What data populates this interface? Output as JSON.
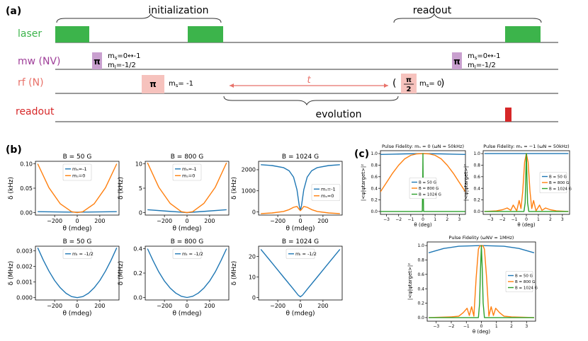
{
  "panel_a": {
    "label": "(a)",
    "init_label": "initialization",
    "readout_top_label": "readout",
    "evolution_label": "evolution",
    "t_label": "t",
    "rows": [
      {
        "name": "laser",
        "label": "laser",
        "color": "#3cb44b"
      },
      {
        "name": "mw",
        "label": "mw (NV)",
        "color": "#a0409a"
      },
      {
        "name": "rf",
        "label": "rf (N)",
        "color": "#e8726a"
      },
      {
        "name": "readout",
        "label": "readout",
        "color": "#d62728"
      }
    ],
    "pi_label": "π",
    "mw_text_1a": "m",
    "mw_text_1b": "=0↔-1",
    "mw_text_2a": "m",
    "mw_text_2b": "=-1/2",
    "mw_sub_s": "s",
    "mw_sub_I": "I",
    "rf_text_1": "m",
    "rf_text_1b": "= -1",
    "rf_text_2b": "= 0",
    "half_pi_num": "π",
    "half_pi_den": "2",
    "paren_open": "(",
    "paren_close": ")",
    "pulse_color": "#f6c2bd",
    "mw_pulse_color": "#c9a0cf",
    "laser_color": "#3cb44b",
    "readout_color": "#d62728"
  },
  "panel_b_label": "(b)",
  "panel_c_label": "(c)",
  "colors": {
    "blue": "#1f77b4",
    "orange": "#ff7f0e",
    "green": "#2ca02c"
  },
  "chart_data": [
    {
      "type": "line",
      "title": "B = 50 G",
      "xlabel": "θ (mdeg)",
      "ylabel": "δ (kHz)",
      "xlim": [
        -370,
        370
      ],
      "ylim": [
        -0.005,
        0.105
      ],
      "xticks": [
        -200,
        0,
        200
      ],
      "xtick_labels": [
        "−200",
        "0",
        "200"
      ],
      "yticks": [
        0.0,
        0.05,
        0.1
      ],
      "ytick_labels": [
        "0.00",
        "0.05",
        "0.10"
      ],
      "legend": "top-center",
      "series": [
        {
          "name": "mₛ=-1",
          "color": "#1f77b4",
          "x": [
            -350,
            0,
            350
          ],
          "y": [
            0.002,
            0.001,
            0.002
          ]
        },
        {
          "name": "mₛ=0",
          "color": "#ff7f0e",
          "x": [
            -350,
            -250,
            -150,
            -50,
            0,
            50,
            150,
            250,
            350
          ],
          "y": [
            0.1,
            0.051,
            0.018,
            0.002,
            0.0,
            0.002,
            0.018,
            0.051,
            0.1
          ]
        }
      ]
    },
    {
      "type": "line",
      "title": "B = 800 G",
      "xlabel": "θ (mdeg)",
      "ylabel": "δ (kHz)",
      "xlim": [
        -370,
        370
      ],
      "ylim": [
        -0.5,
        10.5
      ],
      "xticks": [
        -200,
        0,
        200
      ],
      "xtick_labels": [
        "−200",
        "0",
        "200"
      ],
      "yticks": [
        0,
        5,
        10
      ],
      "ytick_labels": [
        "0",
        "5",
        "10"
      ],
      "legend": "top-center",
      "series": [
        {
          "name": "mₛ=-1",
          "color": "#1f77b4",
          "x": [
            -350,
            -175,
            0,
            175,
            350
          ],
          "y": [
            0.6,
            0.3,
            0.0,
            0.3,
            0.6
          ]
        },
        {
          "name": "mₛ=0",
          "color": "#ff7f0e",
          "x": [
            -350,
            -250,
            -150,
            -50,
            0,
            50,
            150,
            250,
            350
          ],
          "y": [
            10.2,
            5.2,
            1.9,
            0.2,
            0.0,
            0.2,
            1.9,
            5.2,
            10.2
          ]
        }
      ]
    },
    {
      "type": "line",
      "title": "B = 1024 G",
      "xlabel": "θ (mdeg)",
      "ylabel": "δ (kHz)",
      "xlim": [
        -370,
        370
      ],
      "ylim": [
        -150,
        2400
      ],
      "xticks": [
        -200,
        0,
        200
      ],
      "xtick_labels": [
        "−200",
        "0",
        "200"
      ],
      "yticks": [
        0,
        1000,
        2000
      ],
      "ytick_labels": [
        "0",
        "1000",
        "2000"
      ],
      "legend": "center-right",
      "series": [
        {
          "name": "mₛ=-1",
          "color": "#1f77b4",
          "x": [
            -350,
            -250,
            -150,
            -100,
            -60,
            -30,
            -10,
            0,
            10,
            30,
            60,
            100,
            150,
            250,
            350
          ],
          "y": [
            2240,
            2200,
            2100,
            1950,
            1650,
            1050,
            300,
            60,
            300,
            1050,
            1650,
            1950,
            2100,
            2200,
            2240
          ]
        },
        {
          "name": "mₛ=0",
          "color": "#ff7f0e",
          "x": [
            -350,
            -250,
            -150,
            -100,
            -60,
            -30,
            -10,
            0,
            10,
            30,
            60,
            100,
            150,
            250,
            350
          ],
          "y": [
            -80,
            -50,
            20,
            110,
            220,
            260,
            120,
            60,
            120,
            260,
            220,
            110,
            20,
            -50,
            -80
          ]
        }
      ]
    },
    {
      "type": "line",
      "title": "B = 50 G",
      "xlabel": "θ (mdeg)",
      "ylabel": "δ (MHz)",
      "xlim": [
        -370,
        370
      ],
      "ylim": [
        -0.00015,
        0.0033
      ],
      "xticks": [
        -200,
        0,
        200
      ],
      "xtick_labels": [
        "−200",
        "0",
        "200"
      ],
      "yticks": [
        0.0,
        0.001,
        0.002,
        0.003
      ],
      "ytick_labels": [
        "0.000",
        "0.001",
        "0.002",
        "0.003"
      ],
      "legend": "top-center",
      "series": [
        {
          "name": "mᵢ = -1/2",
          "color": "#1f77b4",
          "x": [
            -350,
            -300,
            -250,
            -200,
            -150,
            -100,
            -50,
            0,
            50,
            100,
            150,
            200,
            250,
            300,
            350
          ],
          "y": [
            0.0032,
            0.0024,
            0.0017,
            0.0011,
            0.00063,
            0.00028,
            7e-05,
            0.0,
            7e-05,
            0.00028,
            0.00063,
            0.0011,
            0.0017,
            0.0024,
            0.0032
          ]
        }
      ]
    },
    {
      "type": "line",
      "title": "B = 800 G",
      "xlabel": "θ (mdeg)",
      "ylabel": "δ (MHz)",
      "xlim": [
        -370,
        370
      ],
      "ylim": [
        -0.02,
        0.42
      ],
      "xticks": [
        -200,
        0,
        200
      ],
      "xtick_labels": [
        "−200",
        "0",
        "200"
      ],
      "yticks": [
        0.0,
        0.2,
        0.4
      ],
      "ytick_labels": [
        "0.0",
        "0.2",
        "0.4"
      ],
      "legend": "top-center",
      "series": [
        {
          "name": "mᵢ = -1/2",
          "color": "#1f77b4",
          "x": [
            -350,
            -300,
            -250,
            -200,
            -150,
            -100,
            -50,
            0,
            50,
            100,
            150,
            200,
            250,
            300,
            350
          ],
          "y": [
            0.4,
            0.3,
            0.21,
            0.135,
            0.078,
            0.036,
            0.01,
            0.0,
            0.01,
            0.036,
            0.078,
            0.135,
            0.21,
            0.3,
            0.4
          ]
        }
      ]
    },
    {
      "type": "line",
      "title": "B = 1024 G",
      "xlabel": "θ (mdeg)",
      "ylabel": "δ (MHz)",
      "xlim": [
        -370,
        370
      ],
      "ylim": [
        -1.2,
        25
      ],
      "xticks": [
        -200,
        0,
        200
      ],
      "xtick_labels": [
        "−200",
        "0",
        "200"
      ],
      "yticks": [
        0,
        10,
        20
      ],
      "ytick_labels": [
        "0",
        "10",
        "20"
      ],
      "legend": "top-center",
      "series": [
        {
          "name": "mᵢ = -1/2",
          "color": "#1f77b4",
          "x": [
            -350,
            -250,
            -150,
            -60,
            -20,
            0,
            20,
            60,
            150,
            250,
            350
          ],
          "y": [
            23.5,
            16.8,
            10.0,
            4.0,
            1.2,
            0.3,
            1.2,
            4.0,
            10.0,
            16.8,
            23.5
          ]
        }
      ]
    },
    {
      "type": "line",
      "title": "Pulse Fidelity: mₛ = 0 (ωN = 50kHz)",
      "xlabel": "θ (deg)",
      "ylabel": "|<ψ|ψtarget>|²",
      "xlim": [
        -3.5,
        3.5
      ],
      "ylim": [
        -0.05,
        1.05
      ],
      "xticks": [
        -3,
        -2,
        -1,
        0,
        1,
        2,
        3
      ],
      "xtick_labels": [
        "−3",
        "−2",
        "−1",
        "0",
        "1",
        "2",
        "3"
      ],
      "yticks": [
        0.0,
        0.2,
        0.4,
        0.6,
        0.8,
        1.0
      ],
      "ytick_labels": [
        "0.0",
        "0.2",
        "0.4",
        "0.6",
        "0.8",
        "1.0"
      ],
      "legend": "center",
      "series": [
        {
          "name": "B = 50 G",
          "color": "#1f77b4",
          "x": [
            -3.5,
            -2.5,
            -1.5,
            0,
            1.5,
            2.5,
            3.5
          ],
          "y": [
            0.985,
            0.99,
            0.995,
            1.0,
            0.995,
            0.99,
            0.985
          ]
        },
        {
          "name": "B = 800 G",
          "color": "#ff7f0e",
          "x": [
            -3.5,
            -3.0,
            -2.5,
            -2.0,
            -1.5,
            -1.0,
            -0.5,
            0,
            0.5,
            1.0,
            1.5,
            2.0,
            2.5,
            3.0,
            3.5
          ],
          "y": [
            0.34,
            0.5,
            0.66,
            0.8,
            0.91,
            0.97,
            0.995,
            1.0,
            0.995,
            0.97,
            0.91,
            0.8,
            0.66,
            0.5,
            0.34
          ]
        },
        {
          "name": "B = 1024 G",
          "color": "#2ca02c",
          "x": [
            -3.5,
            -0.05,
            -0.02,
            0,
            0.02,
            0.05,
            3.5
          ],
          "y": [
            0.0,
            0.0,
            0.5,
            1.0,
            0.5,
            0.0,
            0.0
          ]
        }
      ]
    },
    {
      "type": "line",
      "title": "Pulse Fidelity: mₛ = −1 (ωN = 50kHz)",
      "xlabel": "θ (deg)",
      "ylabel": "|<ψ|ψtarget>|²",
      "xlim": [
        -3.6,
        3.6
      ],
      "ylim": [
        -0.05,
        1.05
      ],
      "xticks": [
        -3,
        -2,
        -1,
        0,
        1,
        2,
        3
      ],
      "xtick_labels": [
        "−3",
        "−2",
        "−1",
        "0",
        "1",
        "2",
        "3"
      ],
      "yticks": [
        0.0,
        0.2,
        0.4,
        0.6,
        0.8,
        1.0
      ],
      "ytick_labels": [
        "0.0",
        "0.2",
        "0.4",
        "0.6",
        "0.8",
        "1.0"
      ],
      "legend": "right",
      "series": [
        {
          "name": "B = 50 G",
          "color": "#1f77b4",
          "x": [
            -3.5,
            3.5
          ],
          "y": [
            1.0,
            1.0
          ]
        },
        {
          "name": "B = 800 G",
          "color": "#ff7f0e",
          "x": [
            -3.5,
            -2.5,
            -2.0,
            -1.6,
            -1.3,
            -1.1,
            -0.8,
            -0.6,
            -0.45,
            -0.3,
            -0.15,
            0,
            0.15,
            0.3,
            0.45,
            0.6,
            0.8,
            1.1,
            1.3,
            1.6,
            2.0,
            2.5,
            3.5
          ],
          "y": [
            0.0,
            0.01,
            0.03,
            0.06,
            0.02,
            0.11,
            0.01,
            0.19,
            0.05,
            0.35,
            0.85,
            1.0,
            0.85,
            0.35,
            0.05,
            0.19,
            0.01,
            0.11,
            0.02,
            0.06,
            0.03,
            0.01,
            0.0
          ]
        },
        {
          "name": "B = 1024 G",
          "color": "#2ca02c",
          "x": [
            -3.5,
            -0.2,
            -0.1,
            -0.05,
            0,
            0.05,
            0.1,
            0.2,
            3.5
          ],
          "y": [
            0.0,
            0.0,
            0.15,
            0.6,
            1.0,
            0.6,
            0.15,
            0.0,
            0.0
          ]
        }
      ]
    },
    {
      "type": "line",
      "title": "Pulse Fidelity (ωNV = 1MHz)",
      "xlabel": "θ (deg)",
      "ylabel": "|<ψ|ψtarget>|²",
      "xlim": [
        -3.6,
        3.6
      ],
      "ylim": [
        -0.05,
        1.05
      ],
      "xticks": [
        -3,
        -2,
        -1,
        0,
        1,
        2,
        3
      ],
      "xtick_labels": [
        "−3",
        "−2",
        "−1",
        "0",
        "1",
        "2",
        "3"
      ],
      "yticks": [
        0.0,
        0.2,
        0.4,
        0.6,
        0.8,
        1.0
      ],
      "ytick_labels": [
        "0.0",
        "0.2",
        "0.4",
        "0.6",
        "0.8",
        "1.0"
      ],
      "legend": "right",
      "series": [
        {
          "name": "B = 50 G",
          "color": "#1f77b4",
          "x": [
            -3.5,
            -2.5,
            -1.5,
            0,
            1.5,
            2.5,
            3.5
          ],
          "y": [
            0.9,
            0.96,
            0.99,
            1.0,
            0.99,
            0.96,
            0.9
          ]
        },
        {
          "name": "B = 800 G",
          "color": "#ff7f0e",
          "x": [
            -3.5,
            -2.0,
            -1.5,
            -1.2,
            -0.95,
            -0.8,
            -0.65,
            -0.5,
            -0.35,
            -0.2,
            -0.1,
            0,
            0.1,
            0.2,
            0.35,
            0.5,
            0.65,
            0.8,
            0.95,
            1.2,
            1.5,
            2.0,
            3.5
          ],
          "y": [
            0.0,
            0.01,
            0.02,
            0.07,
            0.13,
            0.03,
            0.15,
            0.02,
            0.55,
            0.95,
            1.0,
            0.99,
            1.0,
            0.95,
            0.55,
            0.02,
            0.15,
            0.03,
            0.13,
            0.07,
            0.02,
            0.01,
            0.0
          ]
        },
        {
          "name": "B = 1024 G",
          "color": "#2ca02c",
          "x": [
            -3.5,
            -0.2,
            -0.12,
            -0.06,
            0,
            0.06,
            0.12,
            0.2,
            3.5
          ],
          "y": [
            0.0,
            0.0,
            0.2,
            0.65,
            1.0,
            0.65,
            0.2,
            0.0,
            0.0
          ]
        }
      ]
    }
  ]
}
